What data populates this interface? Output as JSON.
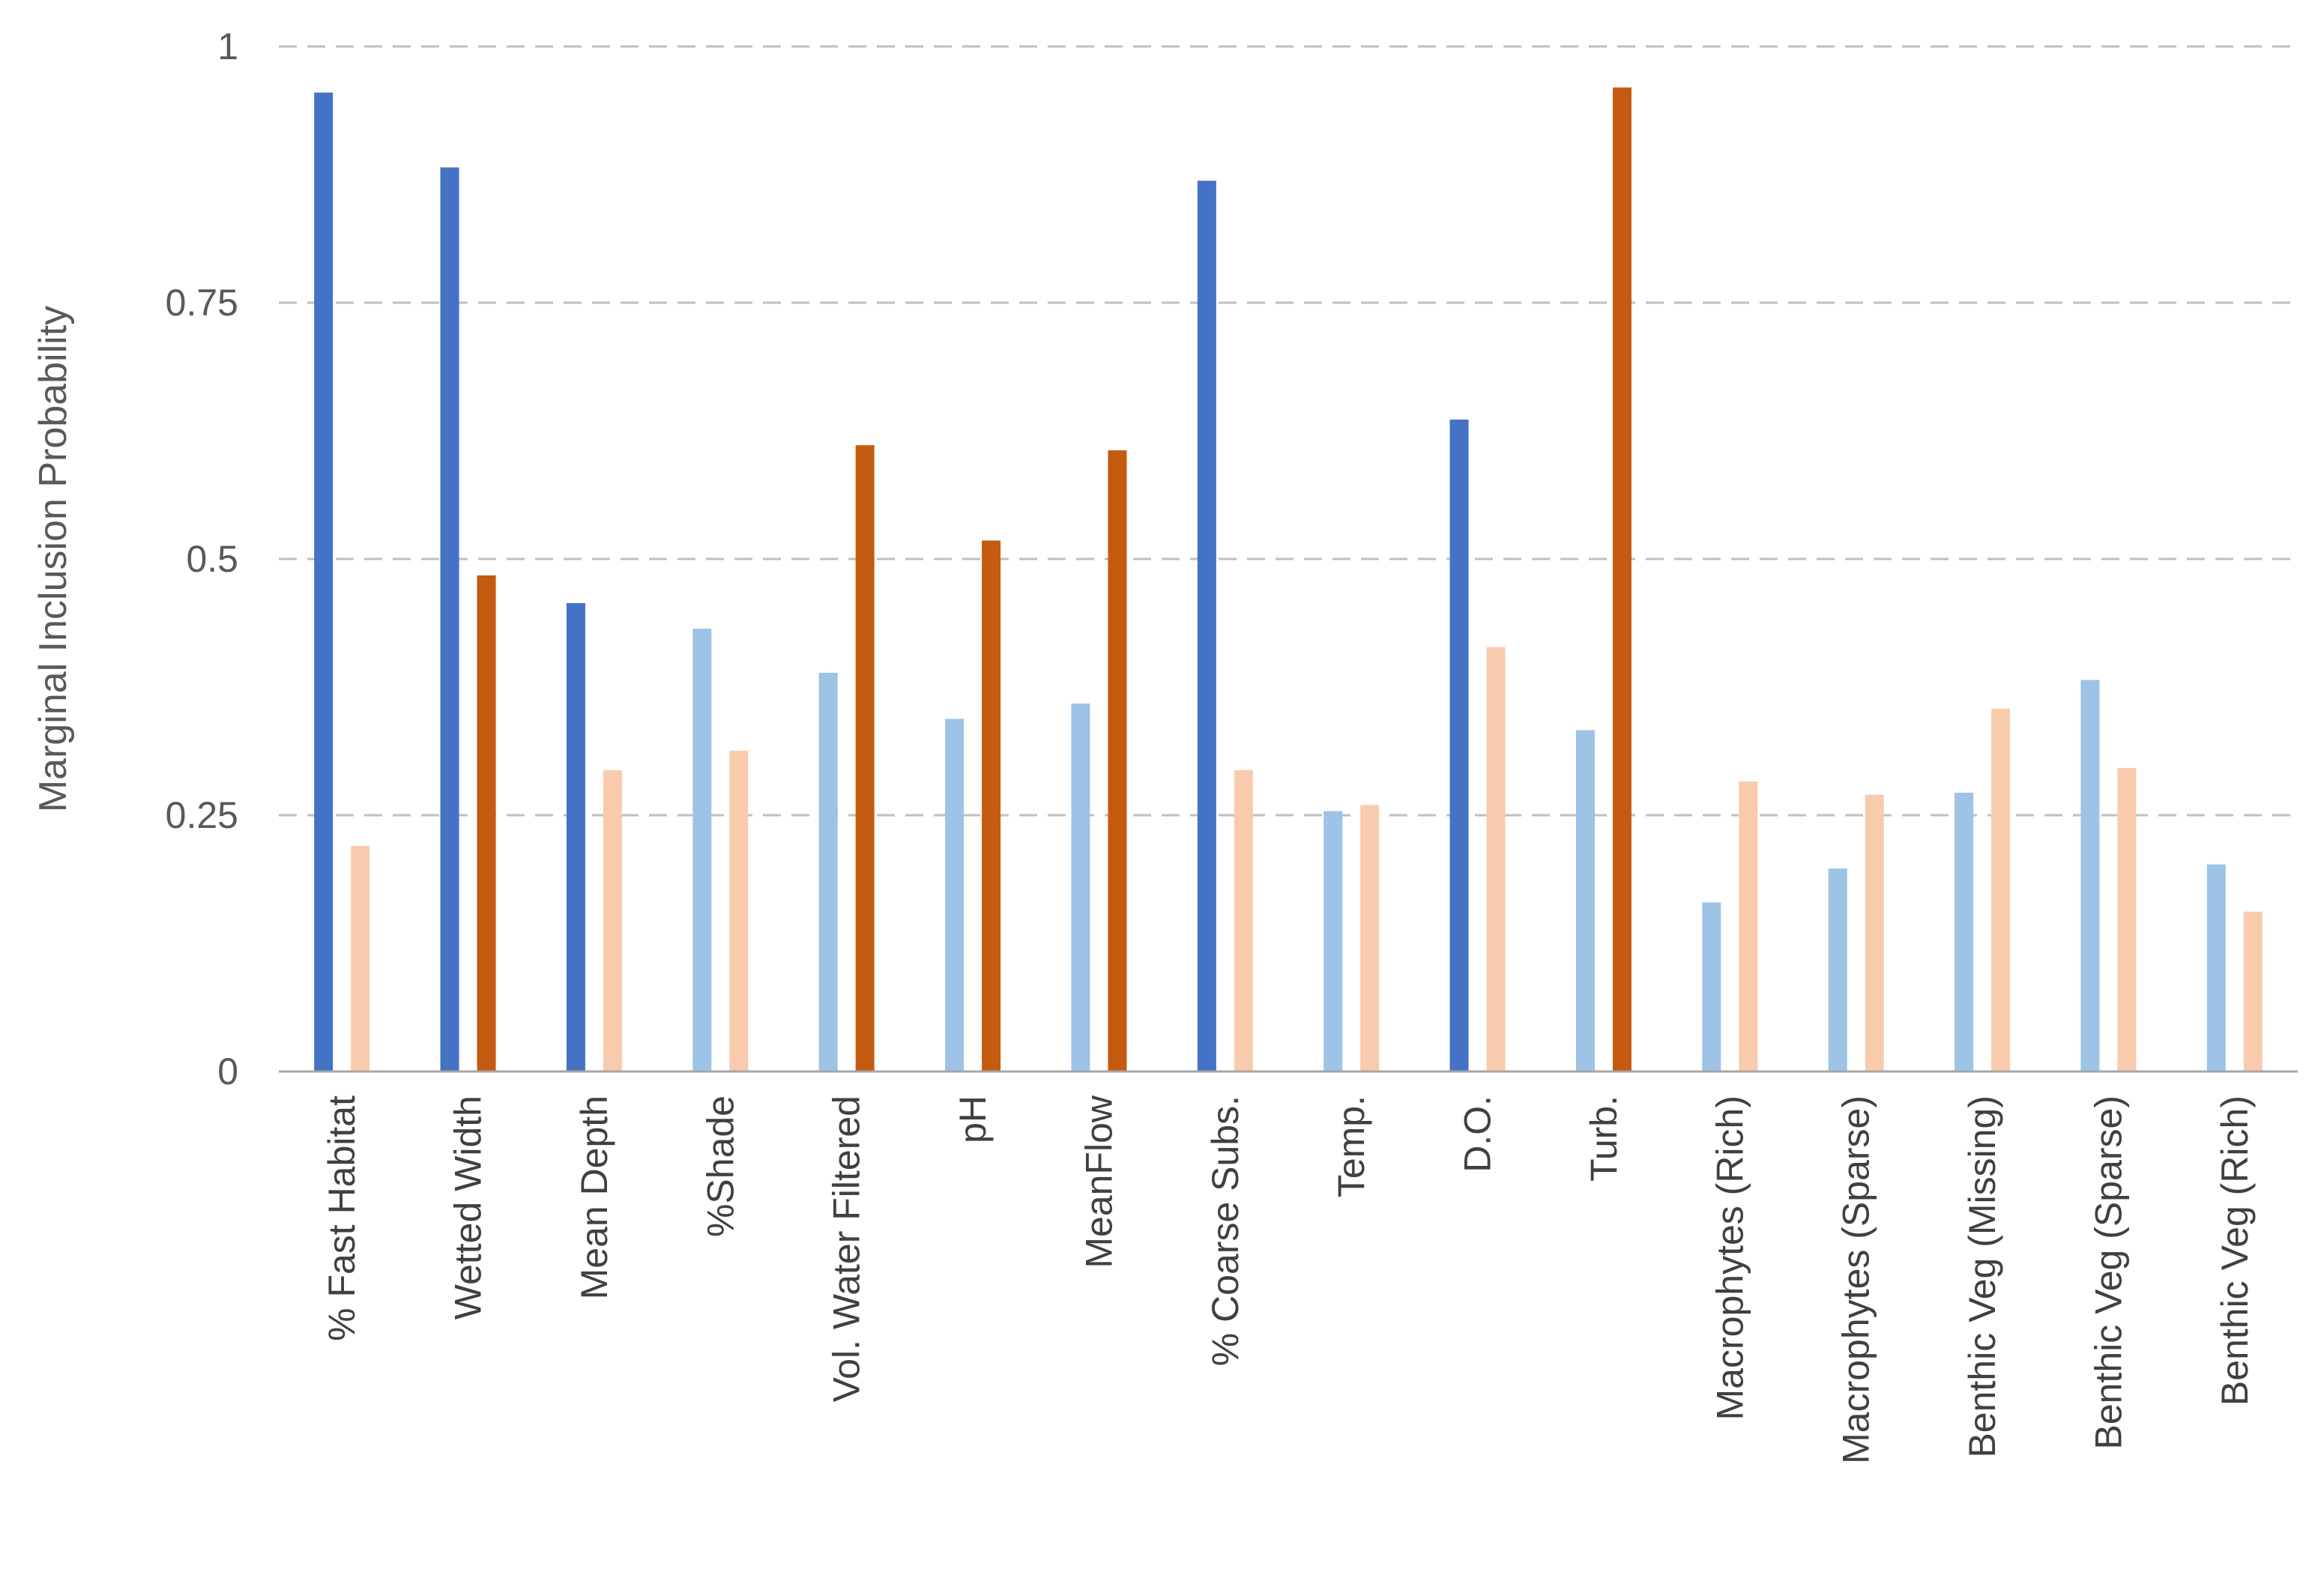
{
  "chart_data": {
    "type": "bar",
    "title": "",
    "xlabel": "",
    "ylabel": "Marginal Inclusion Probability",
    "ylim": [
      0,
      1
    ],
    "yticks": [
      0,
      0.25,
      0.5,
      0.75,
      1
    ],
    "ytick_labels": [
      "0",
      "0.25",
      "0.5",
      "0.75",
      "1"
    ],
    "grid": true,
    "legend": "none",
    "categories": [
      "% Fast Habitat",
      "Wetted Width",
      "Mean Depth",
      "%Shade",
      "Vol. Water Filtered",
      "pH",
      "MeanFlow",
      "% Coarse Subs.",
      "Temp.",
      "D.O.",
      "Turb.",
      "Macrophytes (Rich)",
      "Macrophytes (Sparse)",
      "Benthic Veg (Missing)",
      "Benthic Veg (Sparse)",
      "Benthic Veg (Rich)"
    ],
    "series": [
      {
        "values": [
          0.955,
          0.882,
          0.457,
          0.432,
          0.389,
          0.344,
          0.359,
          0.869,
          0.254,
          0.636,
          0.333,
          0.165,
          0.198,
          0.272,
          0.382,
          0.202
        ],
        "colors": [
          "#4472C4",
          "#4472C4",
          "#4472C4",
          "#9DC3E6",
          "#9DC3E6",
          "#9DC3E6",
          "#9DC3E6",
          "#4472C4",
          "#9DC3E6",
          "#4472C4",
          "#9DC3E6",
          "#9DC3E6",
          "#9DC3E6",
          "#9DC3E6",
          "#9DC3E6",
          "#9DC3E6"
        ]
      },
      {
        "values": [
          0.22,
          0.484,
          0.294,
          0.313,
          0.611,
          0.518,
          0.606,
          0.294,
          0.26,
          0.414,
          0.96,
          0.283,
          0.27,
          0.354,
          0.296,
          0.156
        ],
        "colors": [
          "#F8CBAD",
          "#C55A11",
          "#F8CBAD",
          "#F8CBAD",
          "#C55A11",
          "#C55A11",
          "#C55A11",
          "#F8CBAD",
          "#F8CBAD",
          "#F8CBAD",
          "#C55A11",
          "#F8CBAD",
          "#F8CBAD",
          "#F8CBAD",
          "#F8CBAD",
          "#F8CBAD"
        ]
      }
    ]
  }
}
